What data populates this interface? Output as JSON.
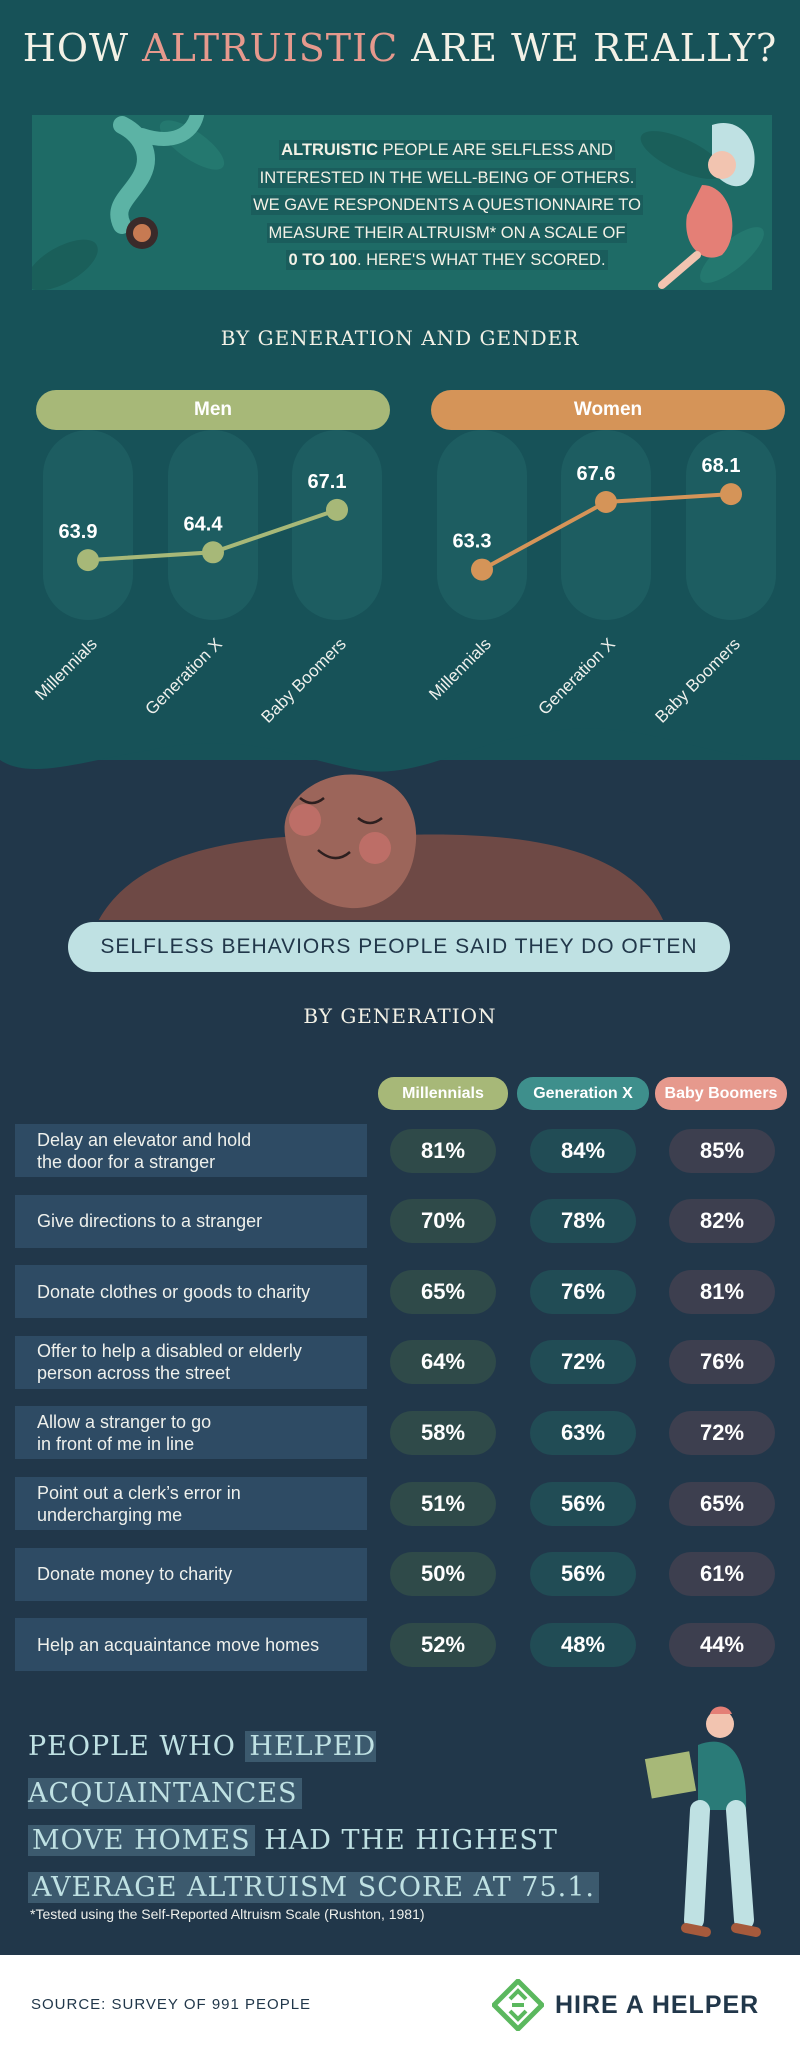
{
  "header": {
    "title_pre": "HOW ",
    "title_accent": "ALTRUISTIC",
    "title_post": " ARE WE REALLY?"
  },
  "intro": {
    "bold_word": "ALTRUISTIC",
    "line1_rest": " PEOPLE ARE SELFLESS AND",
    "line2": "INTERESTED IN THE WELL-BEING OF OTHERS.",
    "line3": "WE GAVE RESPONDENTS A QUESTIONNAIRE TO",
    "line4": "MEASURE THEIR ALTRUISM* ON A SCALE OF",
    "bold_range": "0 TO 100",
    "line5_rest": ". HERE'S WHAT THEY SCORED."
  },
  "section1_heading": "BY GENERATION AND GENDER",
  "section2_tag": "SELFLESS BEHAVIORS PEOPLE SAID THEY DO OFTEN",
  "section2_heading": "BY GENERATION",
  "colors": {
    "men": "#a7b878",
    "women": "#d59458",
    "millennials_header": "#a7b878",
    "genx_header": "#3e8f8c",
    "boomers_header": "#e6998d",
    "accent_title": "#e6998d"
  },
  "chart_data": [
    {
      "type": "line",
      "title": "Men",
      "categories": [
        "Millennials",
        "Generation X",
        "Baby Boomers"
      ],
      "series": [
        {
          "name": "Men",
          "values": [
            63.9,
            64.4,
            67.1
          ]
        }
      ],
      "data_labels": [
        "63.9",
        "64.4",
        "67.1"
      ]
    },
    {
      "type": "line",
      "title": "Women",
      "categories": [
        "Millennials",
        "Generation X",
        "Baby Boomers"
      ],
      "series": [
        {
          "name": "Women",
          "values": [
            63.3,
            67.6,
            68.1
          ]
        }
      ],
      "data_labels": [
        "63.3",
        "67.6",
        "68.1"
      ]
    },
    {
      "type": "table",
      "columns": [
        "Millennials",
        "Generation X",
        "Baby Boomers"
      ],
      "rows": [
        {
          "label": "Delay an elevator and hold the door for a stranger",
          "lines": [
            "Delay an elevator and hold",
            "the door for a stranger"
          ],
          "values": [
            "81%",
            "84%",
            "85%"
          ]
        },
        {
          "label": "Give directions to a stranger",
          "lines": [
            "Give directions to a stranger"
          ],
          "values": [
            "70%",
            "78%",
            "82%"
          ]
        },
        {
          "label": "Donate clothes or goods to charity",
          "lines": [
            "Donate clothes or goods to charity"
          ],
          "values": [
            "65%",
            "76%",
            "81%"
          ]
        },
        {
          "label": "Offer to help a disabled or elderly person across the street",
          "lines": [
            "Offer to help a disabled or elderly",
            "person across the street"
          ],
          "values": [
            "64%",
            "72%",
            "76%"
          ]
        },
        {
          "label": "Allow a stranger to go in front of me in line",
          "lines": [
            "Allow a stranger to go",
            "in front of me in line"
          ],
          "values": [
            "58%",
            "63%",
            "72%"
          ]
        },
        {
          "label": "Point out a clerk's error in undercharging me",
          "lines": [
            "Point out a clerk’s error in",
            "undercharging me"
          ],
          "values": [
            "51%",
            "56%",
            "65%"
          ]
        },
        {
          "label": "Donate money to charity",
          "lines": [
            "Donate money to charity"
          ],
          "values": [
            "50%",
            "56%",
            "61%"
          ]
        },
        {
          "label": "Help an acquaintance move homes",
          "lines": [
            "Help an acquaintance move homes"
          ],
          "values": [
            "52%",
            "48%",
            "44%"
          ]
        }
      ]
    }
  ],
  "closing": {
    "line1_pre": "PEOPLE WHO ",
    "line1_hl": "HELPED ACQUAINTANCES",
    "line2_hl": "MOVE HOMES",
    "line2_post": " HAD THE HIGHEST",
    "line3_hl": "AVERAGE ALTRUISM SCORE AT 75.1."
  },
  "footnote": "*Tested using the Self-Reported Altruism Scale (Rushton, 1981)",
  "footer": {
    "source": "SOURCE: SURVEY OF 991 PEOPLE",
    "brand": "HIRE A HELPER"
  },
  "icons": {
    "logo": "hire-a-helper-logo-icon",
    "illustration_top_left": "falling-person-illustration",
    "illustration_top_right": "floating-woman-illustration",
    "illustration_middle": "smiling-face-illustration",
    "illustration_bottom": "man-carrying-box-illustration"
  }
}
